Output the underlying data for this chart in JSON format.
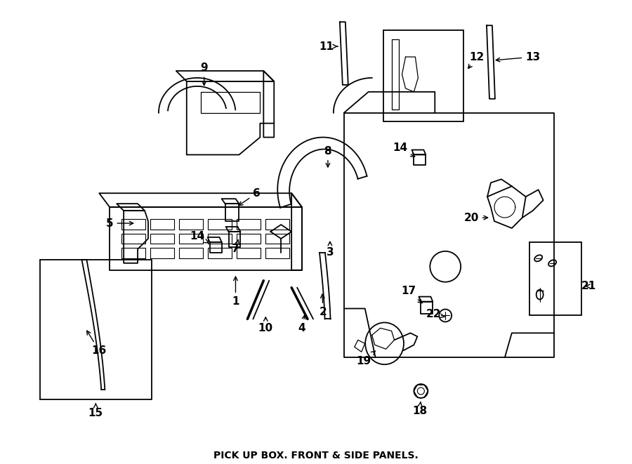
{
  "title": "PICK UP BOX. FRONT & SIDE PANELS.",
  "bg_color": "#ffffff",
  "line_color": "#000000",
  "figsize": [
    9.0,
    6.61
  ],
  "dpi": 100
}
